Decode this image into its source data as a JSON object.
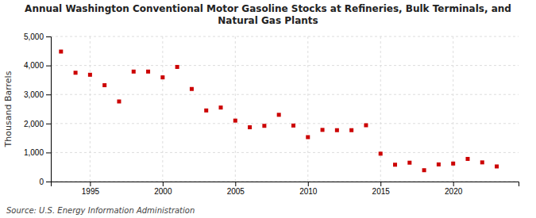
{
  "chart_data": {
    "type": "scatter",
    "title": "Annual Washington Conventional Motor Gasoline Stocks at Refineries, Bulk Terminals, and\nNatural Gas Plants",
    "ylabel": "Thousand Barrels",
    "annotations": [
      "Source: U.S. Energy Information Administration"
    ],
    "x": [
      1993,
      1994,
      1995,
      1996,
      1997,
      1998,
      1999,
      2000,
      2001,
      2002,
      2003,
      2004,
      2005,
      2006,
      2007,
      2008,
      2009,
      2010,
      2011,
      2012,
      2013,
      2014,
      2015,
      2016,
      2017,
      2018,
      2019,
      2020,
      2021,
      2022,
      2023
    ],
    "values": [
      4480,
      3750,
      3680,
      3320,
      2760,
      3790,
      3790,
      3590,
      3950,
      3190,
      2450,
      2550,
      2100,
      1870,
      1920,
      2300,
      1930,
      1530,
      1780,
      1770,
      1770,
      1940,
      960,
      580,
      650,
      390,
      590,
      620,
      780,
      660,
      520
    ],
    "color": "#cc0000",
    "marker": "square",
    "xlim": [
      1992.3,
      2024.5
    ],
    "xticks": [
      1995,
      2000,
      2005,
      2010,
      2015,
      2020
    ],
    "ylim": [
      0,
      5000
    ],
    "yticks": [
      0,
      {
        "value": 1000,
        "label": "1,000"
      },
      {
        "value": 2000,
        "label": "2,000"
      },
      {
        "value": 3000,
        "label": "3,000"
      },
      {
        "value": 4000,
        "label": "4,000"
      },
      {
        "value": 5000,
        "label": "5,000"
      }
    ],
    "grid": true
  }
}
